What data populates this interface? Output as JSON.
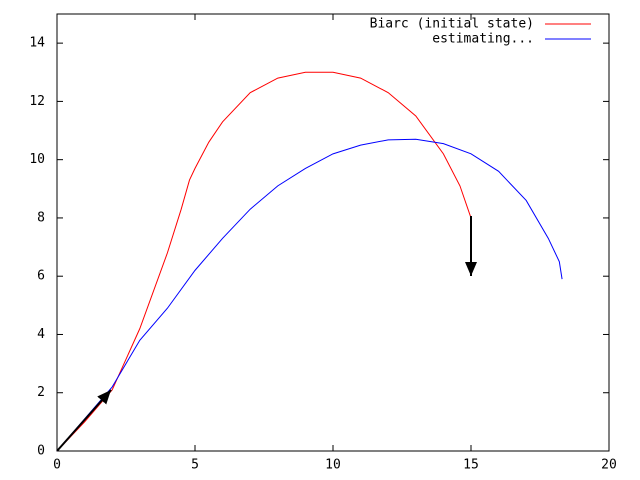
{
  "chart_data": {
    "type": "line",
    "xlim": [
      0,
      20
    ],
    "ylim": [
      0,
      15
    ],
    "xticks": [
      0,
      5,
      10,
      15,
      20
    ],
    "yticks": [
      0,
      2,
      4,
      6,
      8,
      10,
      12,
      14
    ],
    "legend": "top-right",
    "series": [
      {
        "name": "Biarc (initial state)",
        "color": "#ff0000",
        "x": [
          0,
          1,
          2,
          3,
          4,
          4.5,
          4.8,
          5,
          5.5,
          6,
          7,
          8,
          9,
          10,
          11,
          12,
          13,
          14,
          14.6,
          15
        ],
        "values": [
          0,
          1,
          2.1,
          4.2,
          6.8,
          8.3,
          9.3,
          9.7,
          10.6,
          11.3,
          12.3,
          12.8,
          13,
          13,
          12.8,
          12.3,
          11.5,
          10.2,
          9.1,
          8
        ]
      },
      {
        "name": "estimating...",
        "color": "#0000ff",
        "x": [
          0,
          1,
          2,
          3,
          4,
          5,
          6,
          7,
          8,
          9,
          10,
          11,
          12,
          13,
          14,
          15,
          16,
          17,
          17.8,
          18.2,
          18.3
        ],
        "values": [
          0,
          1.1,
          2.2,
          3.8,
          4.9,
          6.2,
          7.3,
          8.3,
          9.1,
          9.7,
          10.2,
          10.5,
          10.68,
          10.7,
          10.55,
          10.2,
          9.6,
          8.6,
          7.3,
          6.5,
          5.9
        ]
      }
    ]
  }
}
